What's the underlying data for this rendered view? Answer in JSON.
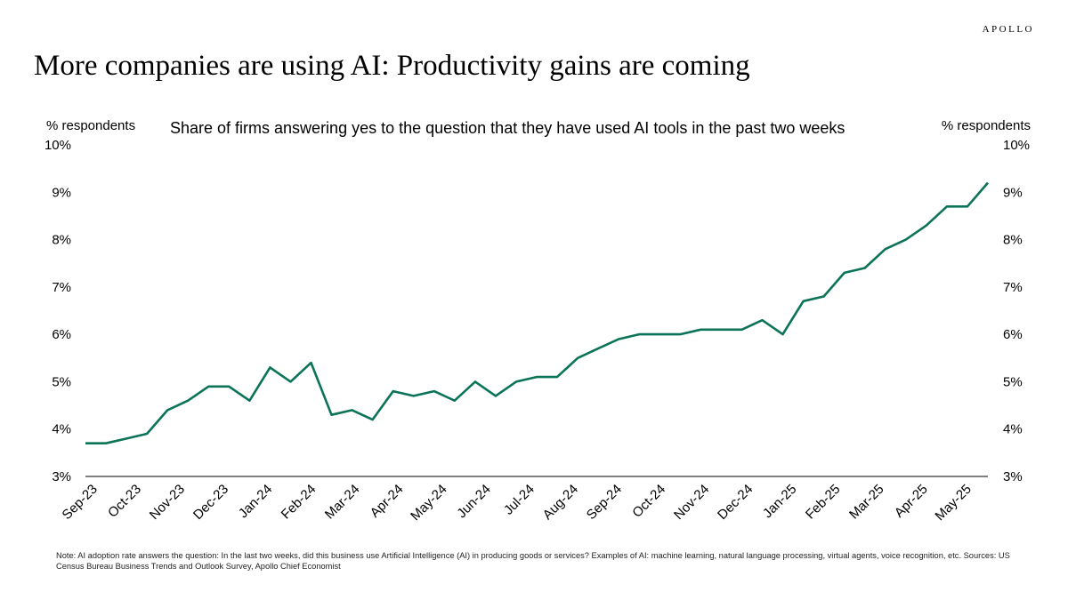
{
  "brand": "APOLLO",
  "title": "More companies are using AI: Productivity gains are coming",
  "note": "Note: AI adoption rate answers the question: In the last two weeks, did this business use Artificial Intelligence (AI) in producing goods or services? Examples of AI: machine learning, natural language processing, virtual agents, voice recognition, etc. Sources: US Census Bureau Business Trends and Outlook Survey, Apollo Chief Economist",
  "colors": {
    "line": "#0a7358",
    "axis": "#000000"
  },
  "chart_data": {
    "type": "line",
    "title": "Share of firms answering yes to the question that they have used AI tools in the past two weeks",
    "ylabel_left": "% respondents",
    "ylabel_right": "% respondents",
    "ylim": [
      3,
      10
    ],
    "yticks": [
      "3%",
      "4%",
      "5%",
      "6%",
      "7%",
      "8%",
      "9%",
      "10%"
    ],
    "grid": false,
    "x_tick_labels": [
      "Sep-23",
      "Oct-23",
      "Nov-23",
      "Dec-23",
      "Jan-24",
      "Feb-24",
      "Mar-24",
      "Apr-24",
      "May-24",
      "Jun-24",
      "Jul-24",
      "Aug-24",
      "Sep-24",
      "Oct-24",
      "Nov-24",
      "Dec-24",
      "Jan-25",
      "Feb-25",
      "Mar-25",
      "Apr-25",
      "May-25"
    ],
    "series": [
      {
        "values": [
          3.7,
          3.7,
          3.8,
          3.9,
          4.4,
          4.6,
          4.9,
          4.9,
          4.6,
          5.3,
          5.0,
          5.4,
          4.3,
          4.4,
          4.2,
          4.8,
          4.7,
          4.8,
          4.6,
          5.0,
          4.7,
          5.0,
          5.1,
          5.1,
          5.5,
          5.7,
          5.9,
          6.0,
          6.0,
          6.0,
          6.1,
          6.1,
          6.1,
          6.3,
          6.0,
          6.7,
          6.8,
          7.3,
          7.4,
          7.8,
          8.0,
          8.3,
          8.7,
          8.7,
          9.2
        ]
      }
    ]
  }
}
